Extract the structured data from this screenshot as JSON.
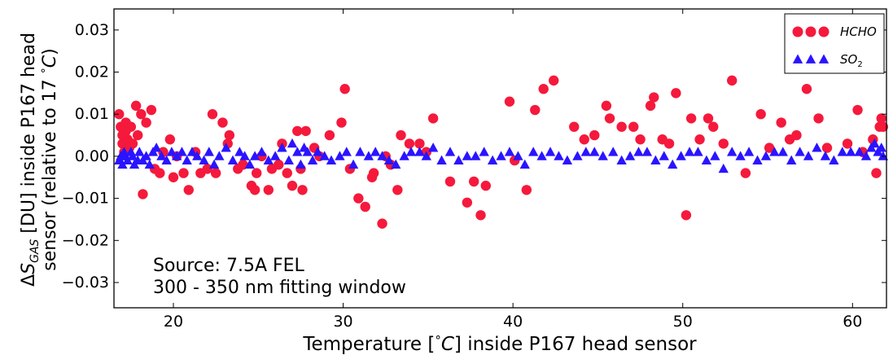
{
  "chart_data": {
    "type": "scatter",
    "xlabel_parts": [
      "Temperature [",
      "°",
      "C",
      "] inside P167 head sensor"
    ],
    "ylabel_line1": {
      "pre": "Δ",
      "sym": "S",
      "sub": "GAS",
      "post": " [DU] inside P167 head"
    },
    "ylabel_line2": {
      "pre": "sensor (relative to 17 ",
      "deg": "°",
      "unit": "C",
      "post": ")"
    },
    "annotation": [
      "Source: 7.5A FEL",
      "300 - 350 nm fitting window"
    ],
    "xlim": [
      16.5,
      62
    ],
    "ylim": [
      -0.036,
      0.035
    ],
    "x_ticks": [
      20,
      30,
      40,
      50,
      60
    ],
    "x_tick_labels": [
      "20",
      "30",
      "40",
      "50",
      "60"
    ],
    "y_ticks": [
      -0.03,
      -0.02,
      -0.01,
      0.0,
      0.01,
      0.02,
      0.03
    ],
    "y_tick_labels": [
      "−0.03",
      "−0.02",
      "−0.01",
      "0.00",
      "0.01",
      "0.02",
      "0.03"
    ],
    "grid": false,
    "legend_position": "top-right",
    "series": [
      {
        "name": "HCHO",
        "legend_label": "HCHO",
        "marker": "circle",
        "color": "#f5193c",
        "points": [
          [
            16.8,
            0.01
          ],
          [
            16.9,
            0.007
          ],
          [
            17.0,
            0.005
          ],
          [
            17.0,
            0.003
          ],
          [
            17.1,
            0.001
          ],
          [
            17.2,
            0.006
          ],
          [
            17.2,
            0.008
          ],
          [
            17.3,
            0.004
          ],
          [
            17.4,
            0.002
          ],
          [
            17.5,
            0.007
          ],
          [
            17.6,
            0.003
          ],
          [
            17.8,
            0.012
          ],
          [
            17.9,
            0.005
          ],
          [
            18.1,
            0.01
          ],
          [
            18.2,
            -0.009
          ],
          [
            18.4,
            0.008
          ],
          [
            18.7,
            0.011
          ],
          [
            18.9,
            -0.003
          ],
          [
            19.2,
            -0.004
          ],
          [
            19.4,
            0.001
          ],
          [
            19.8,
            0.004
          ],
          [
            20.0,
            -0.005
          ],
          [
            20.2,
            0.0
          ],
          [
            20.6,
            -0.004
          ],
          [
            20.9,
            -0.008
          ],
          [
            21.3,
            0.001
          ],
          [
            21.6,
            -0.004
          ],
          [
            22.0,
            -0.003
          ],
          [
            22.3,
            0.01
          ],
          [
            22.5,
            -0.004
          ],
          [
            22.9,
            0.008
          ],
          [
            23.2,
            0.003
          ],
          [
            23.3,
            0.005
          ],
          [
            23.8,
            -0.003
          ],
          [
            24.1,
            -0.002
          ],
          [
            24.6,
            -0.007
          ],
          [
            24.8,
            -0.008
          ],
          [
            24.9,
            -0.004
          ],
          [
            25.2,
            0.0
          ],
          [
            25.6,
            -0.008
          ],
          [
            25.8,
            -0.003
          ],
          [
            26.2,
            -0.002
          ],
          [
            26.4,
            0.003
          ],
          [
            26.7,
            -0.004
          ],
          [
            27.0,
            -0.007
          ],
          [
            27.3,
            0.006
          ],
          [
            27.5,
            -0.003
          ],
          [
            27.6,
            -0.008
          ],
          [
            27.8,
            0.006
          ],
          [
            28.3,
            0.002
          ],
          [
            28.6,
            0.0
          ],
          [
            29.2,
            0.005
          ],
          [
            29.9,
            0.008
          ],
          [
            30.1,
            0.016
          ],
          [
            30.4,
            -0.003
          ],
          [
            30.9,
            -0.01
          ],
          [
            31.3,
            -0.012
          ],
          [
            31.7,
            -0.005
          ],
          [
            31.8,
            -0.004
          ],
          [
            32.3,
            -0.016
          ],
          [
            32.5,
            0.0
          ],
          [
            32.8,
            -0.002
          ],
          [
            33.2,
            -0.008
          ],
          [
            33.4,
            0.005
          ],
          [
            33.9,
            0.003
          ],
          [
            34.5,
            0.003
          ],
          [
            34.9,
            0.001
          ],
          [
            35.3,
            0.009
          ],
          [
            36.3,
            -0.006
          ],
          [
            37.3,
            -0.011
          ],
          [
            37.7,
            -0.006
          ],
          [
            38.1,
            -0.014
          ],
          [
            38.4,
            -0.007
          ],
          [
            39.8,
            0.013
          ],
          [
            40.1,
            -0.001
          ],
          [
            40.8,
            -0.008
          ],
          [
            41.3,
            0.011
          ],
          [
            41.8,
            0.016
          ],
          [
            42.4,
            0.018
          ],
          [
            43.6,
            0.007
          ],
          [
            44.2,
            0.004
          ],
          [
            44.8,
            0.005
          ],
          [
            45.5,
            0.012
          ],
          [
            45.7,
            0.009
          ],
          [
            46.4,
            0.007
          ],
          [
            47.1,
            0.007
          ],
          [
            47.5,
            0.004
          ],
          [
            48.1,
            0.012
          ],
          [
            48.3,
            0.014
          ],
          [
            48.8,
            0.004
          ],
          [
            49.2,
            0.003
          ],
          [
            49.6,
            0.015
          ],
          [
            50.2,
            -0.014
          ],
          [
            50.5,
            0.009
          ],
          [
            51.0,
            0.004
          ],
          [
            51.5,
            0.009
          ],
          [
            51.8,
            0.007
          ],
          [
            52.4,
            0.003
          ],
          [
            52.9,
            0.018
          ],
          [
            53.7,
            -0.004
          ],
          [
            54.6,
            0.01
          ],
          [
            55.1,
            0.002
          ],
          [
            55.8,
            0.008
          ],
          [
            56.3,
            0.004
          ],
          [
            56.7,
            0.005
          ],
          [
            57.3,
            0.016
          ],
          [
            58.0,
            0.009
          ],
          [
            58.5,
            0.002
          ],
          [
            59.7,
            0.003
          ],
          [
            60.3,
            0.011
          ],
          [
            60.6,
            0.001
          ],
          [
            61.2,
            0.004
          ],
          [
            61.4,
            -0.004
          ],
          [
            61.6,
            0.007
          ],
          [
            61.7,
            0.009
          ],
          [
            61.8,
            0.007
          ]
        ]
      },
      {
        "name": "SO2",
        "legend_label_parts": [
          "SO",
          "2"
        ],
        "marker": "triangle",
        "color": "#2a14ff",
        "points": [
          [
            16.8,
            -0.001
          ],
          [
            16.9,
            0.0
          ],
          [
            17.0,
            -0.002
          ],
          [
            17.1,
            0.001
          ],
          [
            17.2,
            0.0
          ],
          [
            17.3,
            -0.001
          ],
          [
            17.5,
            0.001
          ],
          [
            17.6,
            0.0
          ],
          [
            17.7,
            -0.002
          ],
          [
            17.9,
            -0.001
          ],
          [
            18.0,
            0.001
          ],
          [
            18.2,
            -0.001
          ],
          [
            18.4,
            0.0
          ],
          [
            18.6,
            -0.002
          ],
          [
            18.8,
            0.001
          ],
          [
            19.0,
            0.002
          ],
          [
            19.3,
            0.0
          ],
          [
            19.6,
            -0.001
          ],
          [
            19.9,
            0.001
          ],
          [
            20.2,
            0.0
          ],
          [
            20.5,
            0.001
          ],
          [
            20.8,
            -0.001
          ],
          [
            21.1,
            0.001
          ],
          [
            21.4,
            0.0
          ],
          [
            21.8,
            -0.001
          ],
          [
            22.1,
            0.001
          ],
          [
            22.4,
            -0.002
          ],
          [
            22.7,
            0.0
          ],
          [
            23.1,
            0.002
          ],
          [
            23.5,
            -0.001
          ],
          [
            23.9,
            0.001
          ],
          [
            24.2,
            0.0
          ],
          [
            24.5,
            -0.002
          ],
          [
            24.8,
            0.0
          ],
          [
            25.2,
            0.001
          ],
          [
            25.6,
            -0.001
          ],
          [
            26.0,
            0.0
          ],
          [
            26.4,
            0.002
          ],
          [
            26.8,
            -0.001
          ],
          [
            27.0,
            0.003
          ],
          [
            27.3,
            0.001
          ],
          [
            27.5,
            -0.002
          ],
          [
            27.7,
            0.002
          ],
          [
            27.9,
            0.001
          ],
          [
            28.2,
            -0.001
          ],
          [
            28.5,
            0.001
          ],
          [
            28.9,
            0.0
          ],
          [
            29.3,
            -0.001
          ],
          [
            29.8,
            0.0
          ],
          [
            30.2,
            0.001
          ],
          [
            30.6,
            -0.002
          ],
          [
            31.0,
            0.001
          ],
          [
            31.5,
            0.0
          ],
          [
            31.9,
            0.001
          ],
          [
            32.3,
            0.0
          ],
          [
            32.7,
            -0.001
          ],
          [
            33.1,
            -0.002
          ],
          [
            33.6,
            0.0
          ],
          [
            34.0,
            0.001
          ],
          [
            34.5,
            0.001
          ],
          [
            34.9,
            0.0
          ],
          [
            35.3,
            0.002
          ],
          [
            35.8,
            -0.001
          ],
          [
            36.3,
            0.001
          ],
          [
            36.8,
            -0.001
          ],
          [
            37.3,
            0.0
          ],
          [
            37.8,
            0.0
          ],
          [
            38.3,
            0.001
          ],
          [
            38.8,
            -0.001
          ],
          [
            39.3,
            0.0
          ],
          [
            39.8,
            0.001
          ],
          [
            40.3,
            0.0
          ],
          [
            40.7,
            -0.002
          ],
          [
            41.2,
            0.001
          ],
          [
            41.7,
            0.0
          ],
          [
            42.2,
            0.001
          ],
          [
            42.7,
            0.0
          ],
          [
            43.2,
            -0.001
          ],
          [
            43.8,
            0.0
          ],
          [
            44.3,
            0.001
          ],
          [
            44.8,
            0.001
          ],
          [
            45.3,
            0.0
          ],
          [
            45.9,
            0.001
          ],
          [
            46.4,
            -0.001
          ],
          [
            46.9,
            0.0
          ],
          [
            47.4,
            0.001
          ],
          [
            47.9,
            0.001
          ],
          [
            48.4,
            -0.001
          ],
          [
            48.9,
            0.0
          ],
          [
            49.4,
            -0.002
          ],
          [
            49.9,
            0.0
          ],
          [
            50.4,
            0.001
          ],
          [
            50.9,
            0.001
          ],
          [
            51.4,
            -0.001
          ],
          [
            51.9,
            0.0
          ],
          [
            52.4,
            -0.003
          ],
          [
            52.9,
            0.001
          ],
          [
            53.4,
            0.0
          ],
          [
            53.9,
            0.001
          ],
          [
            54.4,
            -0.001
          ],
          [
            54.9,
            0.0
          ],
          [
            55.4,
            0.001
          ],
          [
            55.9,
            0.001
          ],
          [
            56.4,
            -0.001
          ],
          [
            56.9,
            0.001
          ],
          [
            57.4,
            0.0
          ],
          [
            57.9,
            0.002
          ],
          [
            58.4,
            0.0
          ],
          [
            58.9,
            -0.001
          ],
          [
            59.4,
            0.001
          ],
          [
            59.9,
            0.001
          ],
          [
            60.4,
            0.001
          ],
          [
            60.8,
            0.0
          ],
          [
            61.1,
            0.002
          ],
          [
            61.3,
            0.003
          ],
          [
            61.5,
            0.001
          ],
          [
            61.7,
            0.002
          ],
          [
            61.8,
            0.0
          ]
        ]
      }
    ]
  }
}
